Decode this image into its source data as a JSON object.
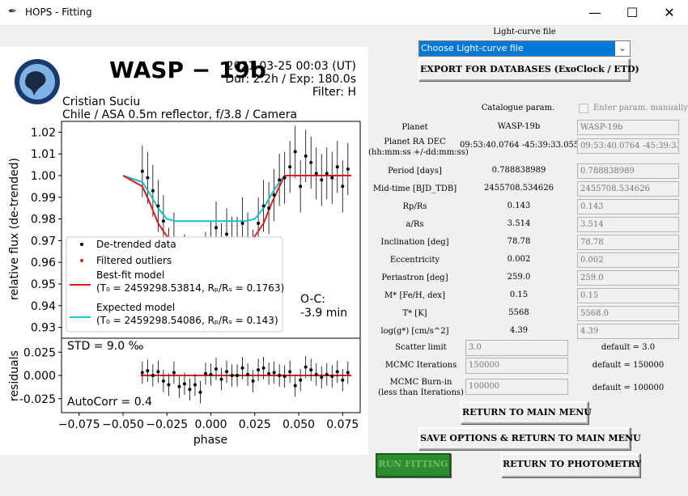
{
  "window": {
    "title": "HOPS - Fitting",
    "minimize_glyph": "—",
    "maximize_glyph": "☐",
    "close_glyph": "✕",
    "icon": "feather-icon"
  },
  "plot": {
    "title": "WASP − 19b",
    "datetime": "2021-03-25 00:03 (UT)",
    "duration": "Dur: 2.2h / Exp: 180.0s",
    "filter": "Filter: H",
    "observer": "Cristian Suciu",
    "location": "Chile / ASA 0.5m reflector, f/3.8 / Camera",
    "ylabel_top": "relative flux (de-trended)",
    "ylabel_bottom": "residuals",
    "xlabel": "phase",
    "oc_label": "O-C:",
    "oc_value": "-3.9 min",
    "std": "STD = 9.0 ‰",
    "autocorr": "AutoCorr = 0.4",
    "legend": {
      "detrended": "De-trended data",
      "outliers": "Filtered outliers",
      "best_fit": "Best-fit model",
      "best_fit_params": "(T₀ = 2459298.53814, Rₚ/Rₛ = 0.1763)",
      "expected": "Expected model",
      "expected_params": "(T₀ = 2459298.54086, Rₚ/Rₛ = 0.143)"
    },
    "yticks_top": [
      "1.02",
      "1.01",
      "1.00",
      "0.99",
      "0.98",
      "0.97",
      "0.96",
      "0.95",
      "0.94",
      "0.93"
    ],
    "yticks_bottom": [
      "0.025",
      "0.000",
      "-0.025"
    ],
    "xticks": [
      "−0.075",
      "−0.050",
      "−0.025",
      "0.000",
      "0.025",
      "0.050",
      "0.075"
    ],
    "colors": {
      "best_fit": "#e31a1c",
      "expected": "#17becf",
      "data": "#000000",
      "outlier": "#e31a1c"
    }
  },
  "chart_data": {
    "type": "scatter",
    "xlabel": "phase",
    "ylabel": "relative flux (de-trended)",
    "xlim": [
      -0.085,
      0.085
    ],
    "ylim": [
      0.925,
      1.025
    ],
    "series": [
      {
        "name": "De-trended data",
        "x": [
          -0.039,
          -0.036,
          -0.033,
          -0.03,
          -0.027,
          -0.024,
          -0.021,
          -0.018,
          -0.015,
          -0.012,
          -0.009,
          -0.006,
          -0.003,
          0.0,
          0.003,
          0.006,
          0.009,
          0.012,
          0.015,
          0.018,
          0.021,
          0.024,
          0.027,
          0.03,
          0.033,
          0.036,
          0.039,
          0.042,
          0.045,
          0.048,
          0.051,
          0.054,
          0.057,
          0.06,
          0.063,
          0.066,
          0.069,
          0.072,
          0.075,
          0.078
        ],
        "y": [
          1.002,
          0.999,
          0.993,
          0.986,
          0.979,
          0.964,
          0.971,
          0.957,
          0.961,
          0.952,
          0.954,
          0.947,
          0.962,
          0.967,
          0.976,
          0.966,
          0.973,
          0.969,
          0.969,
          0.978,
          0.971,
          0.963,
          0.978,
          0.986,
          0.985,
          0.991,
          0.998,
          0.999,
          1.004,
          1.011,
          0.995,
          1.009,
          1.006,
          1.001,
          0.998,
          1.001,
          0.999,
          1.004,
          0.995,
          1.003
        ]
      },
      {
        "name": "Filtered outliers",
        "x": [
          0.009
        ],
        "y": [
          0.957
        ]
      },
      {
        "name": "Best-fit model",
        "x": [
          -0.05,
          -0.039,
          -0.035,
          -0.03,
          -0.025,
          -0.02,
          -0.01,
          0.0,
          0.01,
          0.02,
          0.025,
          0.03,
          0.035,
          0.039,
          0.042,
          0.05,
          0.08
        ],
        "y": [
          1.0,
          0.995,
          0.988,
          0.978,
          0.972,
          0.97,
          0.969,
          0.969,
          0.969,
          0.97,
          0.972,
          0.978,
          0.988,
          0.995,
          1.0,
          1.0,
          1.0
        ]
      },
      {
        "name": "Expected model",
        "x": [
          -0.05,
          -0.039,
          -0.035,
          -0.03,
          -0.025,
          -0.02,
          -0.01,
          0.0,
          0.01,
          0.02,
          0.025,
          0.03,
          0.035,
          0.039,
          0.042,
          0.05,
          0.08
        ],
        "y": [
          1.0,
          0.997,
          0.992,
          0.985,
          0.98,
          0.979,
          0.979,
          0.979,
          0.979,
          0.979,
          0.98,
          0.985,
          0.992,
          0.997,
          1.0,
          1.0,
          1.0
        ]
      }
    ],
    "residuals": {
      "ylabel": "residuals",
      "ylim": [
        -0.04,
        0.04
      ],
      "y": [
        0.003,
        0.005,
        0.0,
        0.004,
        -0.006,
        -0.01,
        0.003,
        -0.012,
        -0.009,
        -0.015,
        -0.01,
        -0.018,
        0.002,
        0.001,
        0.007,
        -0.004,
        0.004,
        0.0,
        0.0,
        0.008,
        0.001,
        -0.006,
        0.006,
        0.008,
        0.002,
        0.003,
        0.0,
        -0.001,
        0.004,
        -0.011,
        -0.005,
        0.009,
        0.006,
        0.001,
        -0.002,
        0.001,
        -0.001,
        0.004,
        -0.005,
        0.003
      ]
    }
  },
  "panel": {
    "lc_file_label": "Light-curve file",
    "lc_select_value": "Choose Light-curve file",
    "export_button": "EXPORT FOR DATABASES (ExoClock / ETD)",
    "catalogue_header": "Catalogue param.",
    "manual_label": "Enter param. manually",
    "rows": [
      {
        "label": "Planet",
        "value": "WASP-19b",
        "entry": "WASP-19b"
      },
      {
        "label": "Planet RA DEC\n(hh:mm:ss +/-dd:mm:ss)",
        "value": "09:53:40.0764 -45:39:33.055",
        "entry": "09:53:40.0764 -45:39:33.055"
      },
      {
        "label": "Period [days]",
        "value": "0.788838989",
        "entry": "0.788838989"
      },
      {
        "label": "Mid-time [BJD_TDB]",
        "value": "2455708.534626",
        "entry": "2455708.534626"
      },
      {
        "label": "Rp/Rs",
        "value": "0.143",
        "entry": "0.143"
      },
      {
        "label": "a/Rs",
        "value": "3.514",
        "entry": "3.514"
      },
      {
        "label": "Inclination [deg]",
        "value": "78.78",
        "entry": "78.78"
      },
      {
        "label": "Eccentricity",
        "value": "0.002",
        "entry": "0.002"
      },
      {
        "label": "Periastron [deg]",
        "value": "259.0",
        "entry": "259.0"
      },
      {
        "label": "M* [Fe/H, dex]",
        "value": "0.15",
        "entry": "0.15"
      },
      {
        "label": "T* [K]",
        "value": "5568",
        "entry": "5568.0"
      },
      {
        "label": "log(g*) [cm/s^2]",
        "value": "4.39",
        "entry": "4.39"
      }
    ],
    "scatter_label": "Scatter limit",
    "scatter_value": "3.0",
    "scatter_default": "default = 3.0",
    "mcmc_label": "MCMC Iterations",
    "mcmc_value": "150000",
    "mcmc_default": "default = 150000",
    "burn_label1": "MCMC Burn-in",
    "burn_label2": "(less than Iterations)",
    "burn_value": "100000",
    "burn_default": "default = 100000",
    "return_main": "RETURN TO MAIN MENU",
    "save_return": "SAVE OPTIONS & RETURN TO MAIN MENU",
    "run_fitting": "RUN FITTING",
    "return_photometry": "RETURN TO PHOTOMETRY"
  }
}
